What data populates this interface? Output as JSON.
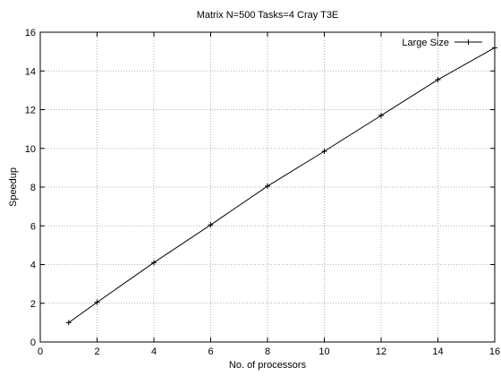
{
  "chart_data": {
    "type": "line",
    "title": "Matrix N=500 Tasks=4 Cray T3E",
    "xlabel": "No. of processors",
    "ylabel": "Speedup",
    "xlim": [
      0,
      16
    ],
    "ylim": [
      0,
      16
    ],
    "x_ticks": [
      0,
      2,
      4,
      6,
      8,
      10,
      12,
      14,
      16
    ],
    "y_ticks": [
      0,
      2,
      4,
      6,
      8,
      10,
      12,
      14,
      16
    ],
    "grid": true,
    "legend_position": "top-right",
    "series": [
      {
        "name": "Large Size",
        "color": "#000000",
        "marker": "plus",
        "x": [
          1,
          2,
          4,
          6,
          8,
          10,
          12,
          14,
          16
        ],
        "y": [
          1.0,
          2.05,
          4.1,
          6.05,
          8.05,
          9.85,
          11.7,
          13.55,
          15.2
        ]
      }
    ]
  }
}
